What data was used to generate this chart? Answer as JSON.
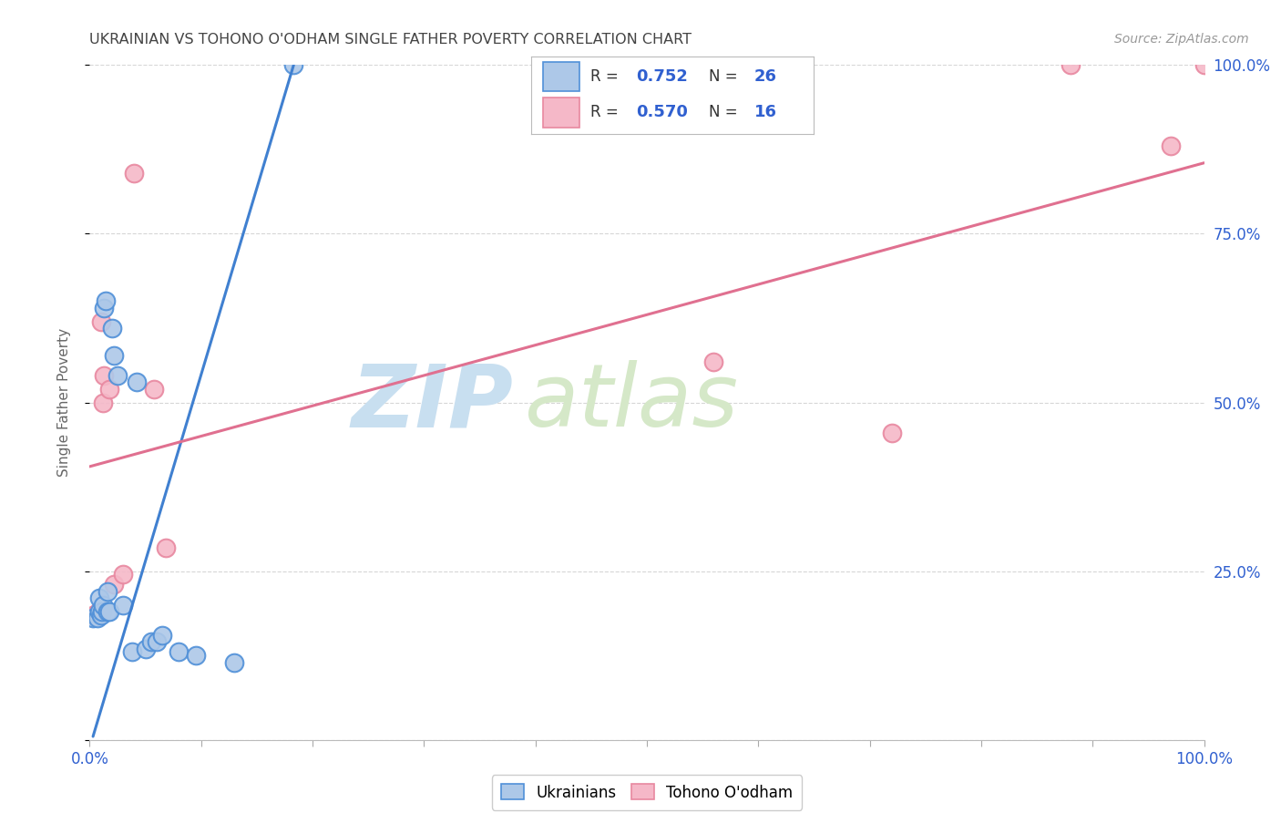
{
  "title": "UKRAINIAN VS TOHONO O'ODHAM SINGLE FATHER POVERTY CORRELATION CHART",
  "source": "Source: ZipAtlas.com",
  "ylabel": "Single Father Poverty",
  "xlim": [
    0.0,
    1.0
  ],
  "ylim": [
    0.0,
    1.0
  ],
  "yticks": [
    0.0,
    0.25,
    0.5,
    0.75,
    1.0
  ],
  "ytick_labels": [
    "",
    "25.0%",
    "50.0%",
    "75.0%",
    "100.0%"
  ],
  "blue_R": 0.752,
  "blue_N": 26,
  "pink_R": 0.57,
  "pink_N": 16,
  "blue_color": "#adc8e8",
  "pink_color": "#f5b8c8",
  "blue_line_color": "#4080d0",
  "pink_line_color": "#e07090",
  "blue_edge_color": "#5090d8",
  "pink_edge_color": "#e888a0",
  "legend_R_color": "#3060d0",
  "background_color": "#ffffff",
  "grid_color": "#cccccc",
  "title_color": "#444444",
  "watermark_zip_color": "#c8dff0",
  "watermark_atlas_color": "#d5e8c8",
  "blue_points_x": [
    0.003,
    0.007,
    0.009,
    0.009,
    0.01,
    0.011,
    0.012,
    0.013,
    0.014,
    0.016,
    0.016,
    0.018,
    0.02,
    0.022,
    0.025,
    0.03,
    0.038,
    0.042,
    0.05,
    0.055,
    0.06,
    0.065,
    0.08,
    0.095,
    0.13,
    0.183
  ],
  "blue_points_y": [
    0.18,
    0.18,
    0.19,
    0.21,
    0.185,
    0.19,
    0.2,
    0.64,
    0.65,
    0.19,
    0.22,
    0.19,
    0.61,
    0.57,
    0.54,
    0.2,
    0.13,
    0.53,
    0.135,
    0.145,
    0.145,
    0.155,
    0.13,
    0.125,
    0.115,
    1.0
  ],
  "pink_points_x": [
    0.003,
    0.008,
    0.01,
    0.012,
    0.013,
    0.018,
    0.022,
    0.03,
    0.04,
    0.058,
    0.068,
    0.56,
    0.72,
    0.88,
    0.97,
    1.0
  ],
  "pink_points_y": [
    0.185,
    0.19,
    0.62,
    0.5,
    0.54,
    0.52,
    0.23,
    0.245,
    0.84,
    0.52,
    0.285,
    0.56,
    0.455,
    1.0,
    0.88,
    1.0
  ],
  "blue_trend_x": [
    0.003,
    0.183
  ],
  "blue_trend_y": [
    0.005,
    1.0
  ],
  "pink_trend_x": [
    0.0,
    1.0
  ],
  "pink_trend_y": [
    0.405,
    0.855
  ]
}
